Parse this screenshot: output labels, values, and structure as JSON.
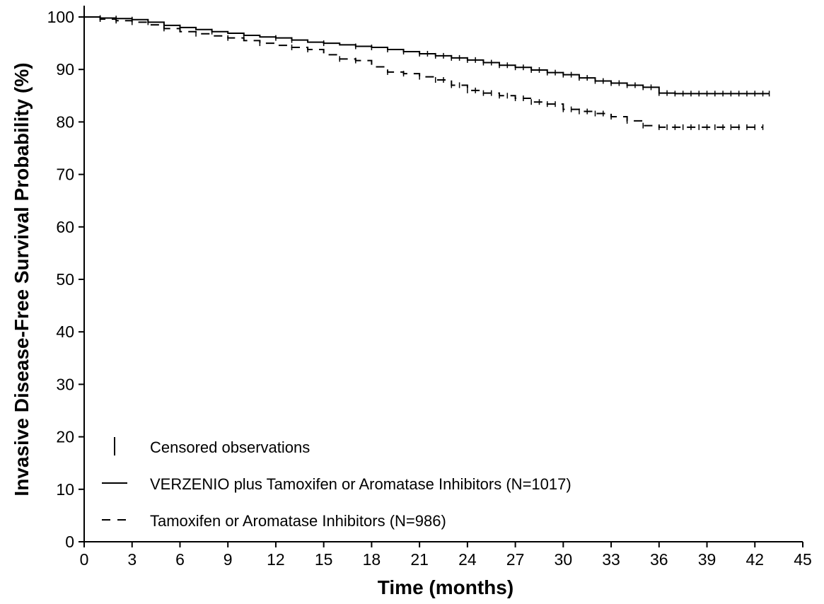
{
  "chart_data": {
    "type": "line",
    "xlabel": "Time (months)",
    "ylabel": "Invasive Disease-Free Survival Probability (%)",
    "xlim": [
      0,
      45
    ],
    "ylim": [
      0,
      100
    ],
    "x_ticks": [
      0,
      3,
      6,
      9,
      12,
      15,
      18,
      21,
      24,
      27,
      30,
      33,
      36,
      39,
      42,
      45
    ],
    "y_ticks": [
      0,
      10,
      20,
      30,
      40,
      50,
      60,
      70,
      80,
      90,
      100
    ],
    "grid": false,
    "legend_position": "bottom-left",
    "legend": {
      "censor_label": "Censored observations",
      "entries": [
        {
          "label": "VERZENIO plus Tamoxifen or Aromatase Inhibitors (N=1017)",
          "style": "solid"
        },
        {
          "label": "Tamoxifen or Aromatase Inhibitors (N=986)",
          "style": "dashed"
        }
      ]
    },
    "series": [
      {
        "name": "VERZENIO plus Tamoxifen or Aromatase Inhibitors (N=1017)",
        "style": "solid",
        "color": "#000000",
        "x": [
          0,
          1,
          2,
          3,
          4,
          5,
          6,
          7,
          8,
          9,
          10,
          11,
          12,
          13,
          14,
          15,
          16,
          17,
          18,
          19,
          20,
          21,
          22,
          23,
          24,
          25,
          26,
          27,
          28,
          29,
          30,
          31,
          32,
          33,
          34,
          35,
          36,
          37,
          38,
          39,
          40,
          41,
          42,
          42.9
        ],
        "y": [
          100,
          99.8,
          99.7,
          99.5,
          99.0,
          98.4,
          98.0,
          97.6,
          97.2,
          96.9,
          96.5,
          96.2,
          96.0,
          95.6,
          95.2,
          95.0,
          94.7,
          94.4,
          94.2,
          93.8,
          93.4,
          93.0,
          92.6,
          92.2,
          91.8,
          91.3,
          90.8,
          90.4,
          89.9,
          89.4,
          89.0,
          88.4,
          87.8,
          87.4,
          87.0,
          86.6,
          85.5,
          85.4,
          85.4,
          85.4,
          85.4,
          85.4,
          85.4,
          85.4
        ],
        "censor_x": [
          1,
          2,
          3,
          4,
          6,
          8,
          10,
          12,
          13,
          15,
          17,
          18,
          19,
          20,
          21,
          21.5,
          22,
          22.5,
          23,
          23.5,
          24,
          24.5,
          25,
          25.5,
          26,
          26.5,
          27,
          27.5,
          28,
          28.5,
          29,
          29.5,
          30,
          30.5,
          31,
          31.5,
          32,
          32.5,
          33,
          33.5,
          34,
          34.5,
          35,
          35.5,
          36,
          36.5,
          37,
          37.5,
          38,
          38.5,
          39,
          39.5,
          40,
          40.5,
          41,
          41.5,
          42,
          42.5,
          42.9
        ]
      },
      {
        "name": "Tamoxifen or Aromatase Inhibitors (N=986)",
        "style": "dashed",
        "color": "#000000",
        "x": [
          0,
          1,
          2,
          3,
          4,
          5,
          6,
          7,
          8,
          9,
          10,
          11,
          12,
          13,
          14,
          15,
          16,
          17,
          18,
          19,
          20,
          21,
          22,
          23,
          24,
          25,
          26,
          27,
          28,
          29,
          30,
          31,
          32,
          33,
          34,
          35,
          36,
          37,
          38,
          39,
          40,
          41,
          42,
          42.5
        ],
        "y": [
          100,
          99.6,
          99.3,
          99.0,
          98.5,
          97.8,
          97.2,
          96.8,
          96.4,
          96.0,
          95.5,
          95.0,
          94.6,
          94.2,
          93.8,
          92.8,
          92.0,
          91.7,
          90.5,
          89.5,
          89.2,
          88.6,
          88.0,
          87.0,
          86.0,
          85.5,
          85.0,
          84.5,
          83.8,
          83.4,
          82.4,
          82.0,
          81.6,
          81.0,
          80.2,
          79.3,
          79.0,
          79.0,
          79.0,
          79.0,
          79.0,
          79.0,
          79.0,
          79.0
        ],
        "censor_x": [
          1,
          2,
          3,
          5,
          7,
          9,
          11,
          13,
          14,
          16,
          17,
          19,
          20,
          21,
          22,
          22.5,
          23,
          23.5,
          24,
          24.5,
          25,
          25.5,
          26,
          26.5,
          27,
          27.5,
          28,
          28.5,
          29,
          29.5,
          30,
          30.5,
          31,
          31.5,
          32,
          32.5,
          33,
          34,
          35,
          36,
          36.5,
          37,
          37.5,
          38,
          38.5,
          39,
          39.5,
          40,
          40.5,
          41,
          41.5,
          42,
          42.5
        ]
      }
    ]
  }
}
